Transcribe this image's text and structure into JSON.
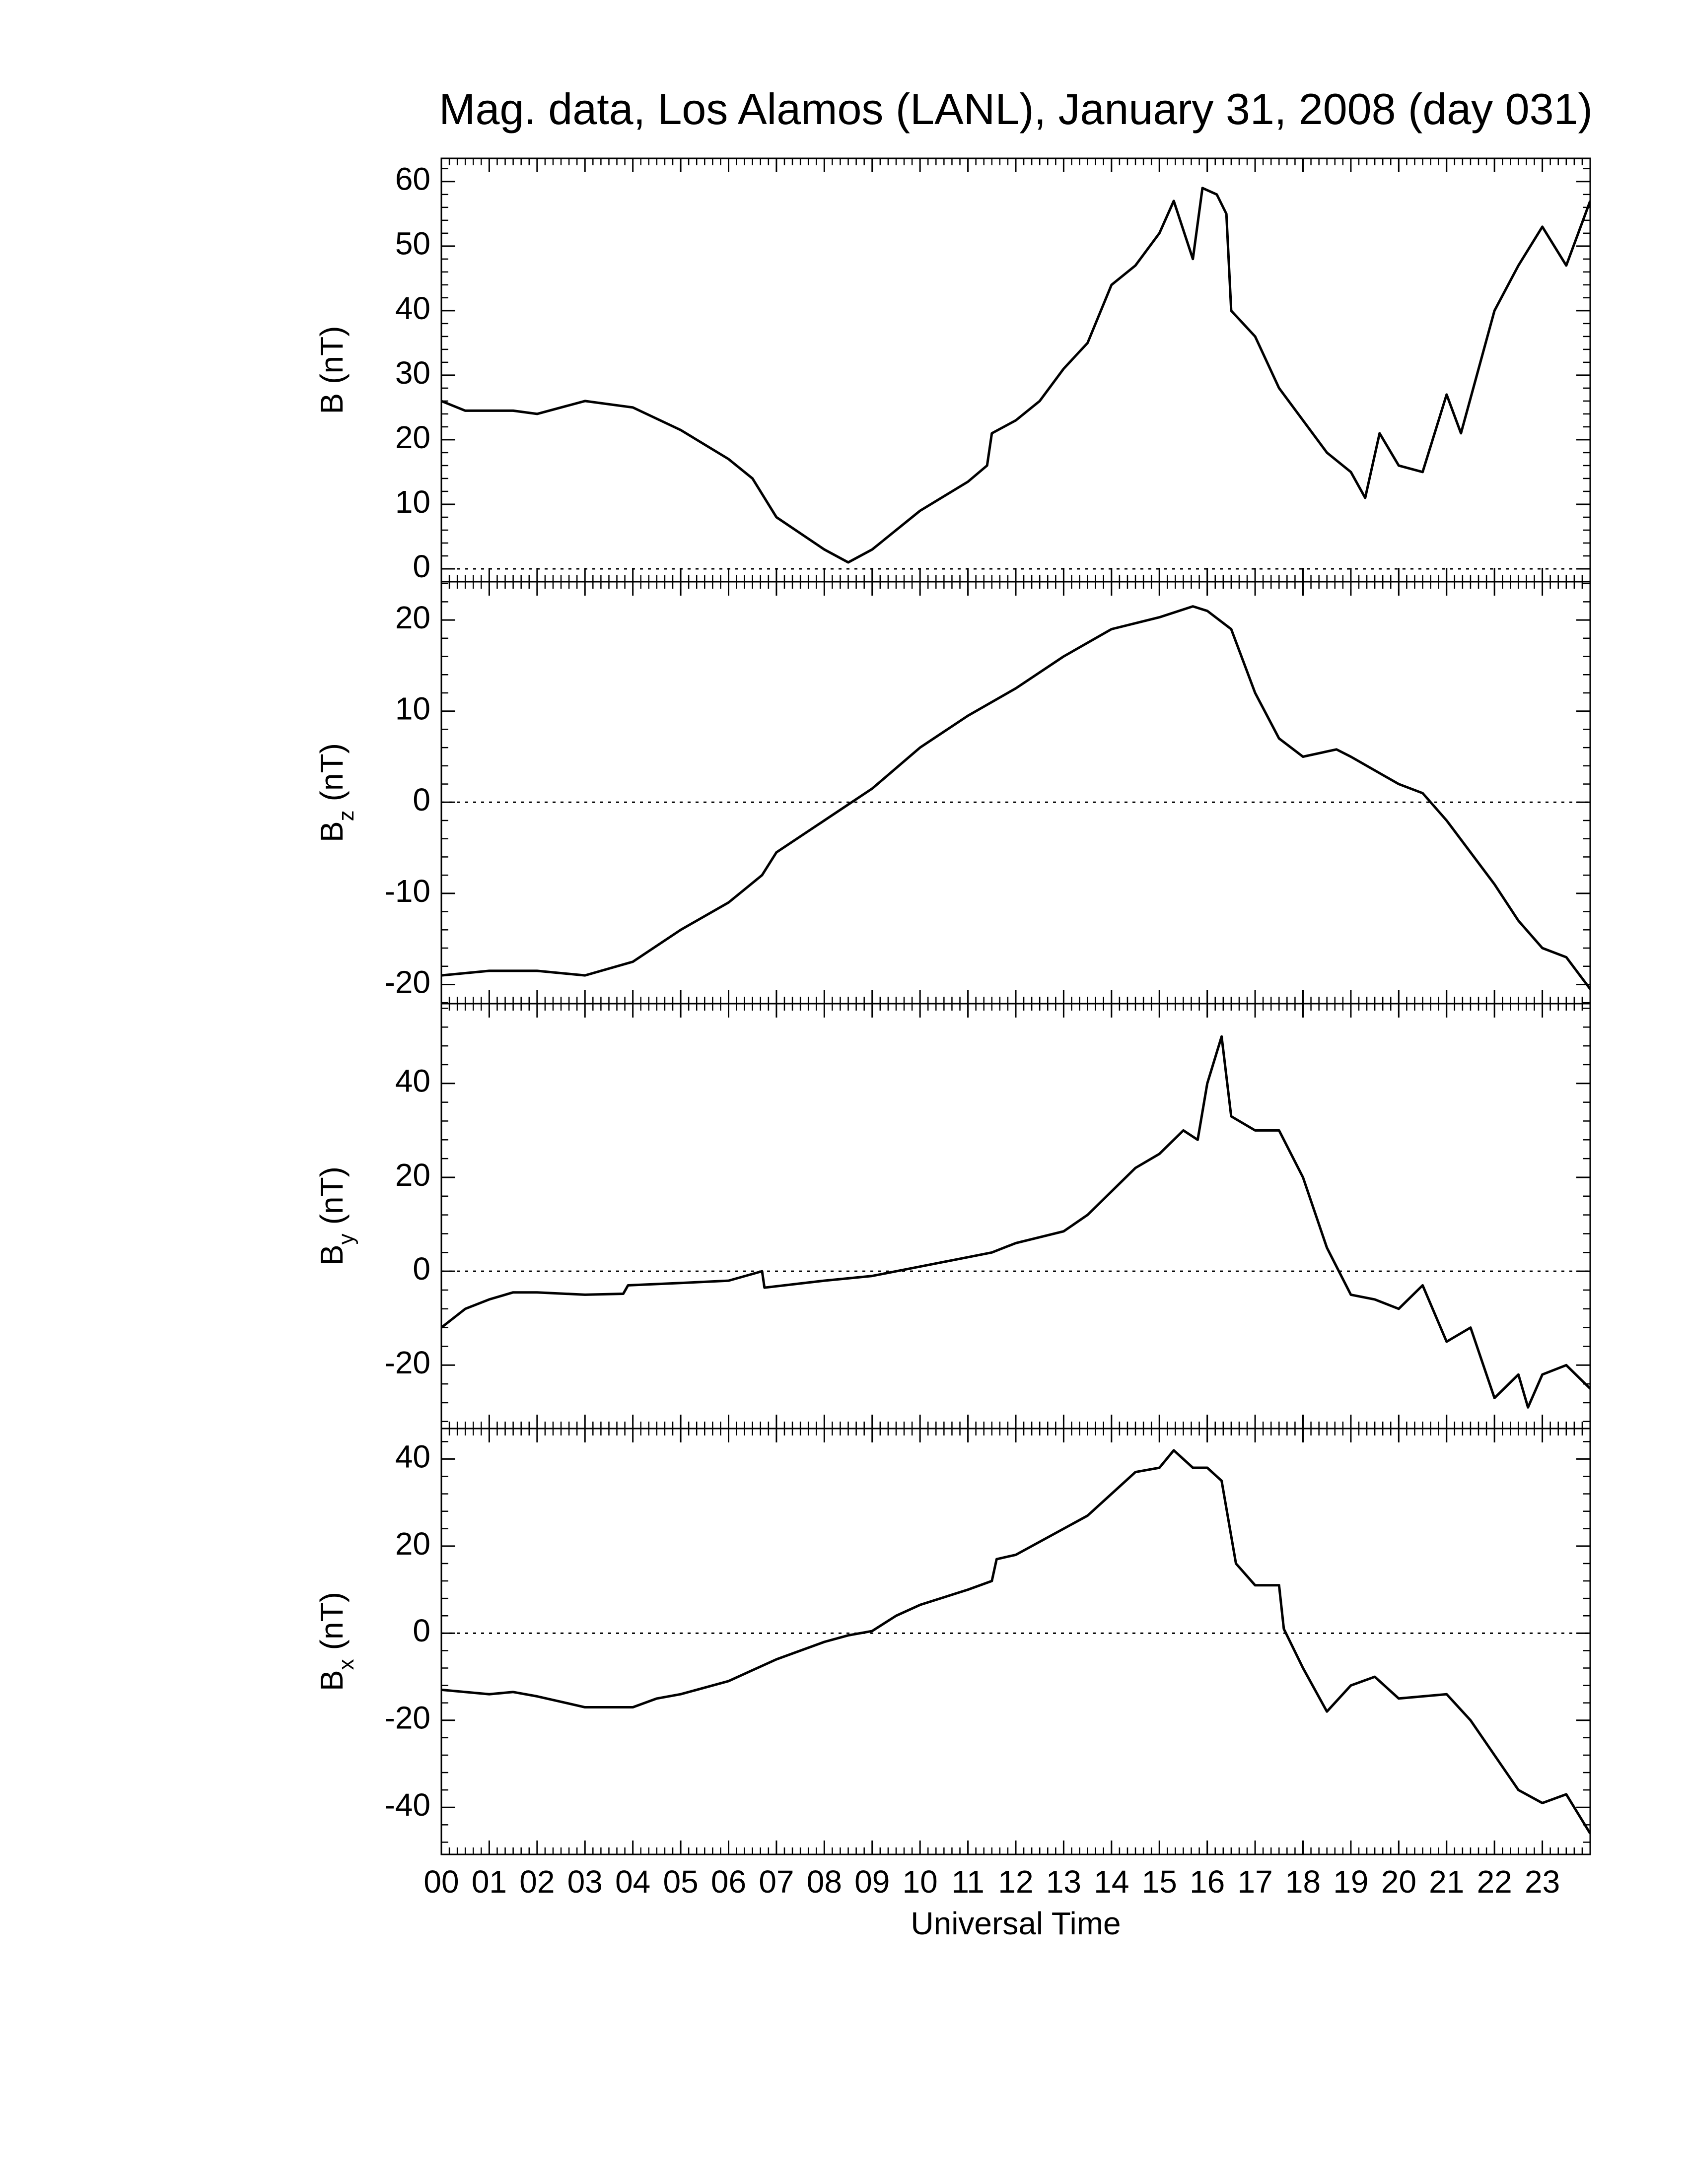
{
  "chart_data": [
    {
      "type": "line",
      "title": "Mag. data, Los Alamos (LANL), January 31, 2008 (day 031)",
      "ylabel": {
        "base": "B",
        "unit": "(nT)"
      },
      "color": "#000000",
      "hline": 0,
      "xminor": 6,
      "xlim": [
        0,
        24
      ],
      "xticks": [
        0,
        1,
        2,
        3,
        4,
        5,
        6,
        7,
        8,
        9,
        10,
        11,
        12,
        13,
        14,
        15,
        16,
        17,
        18,
        19,
        20,
        21,
        22,
        23
      ],
      "ylim": [
        -2,
        63.6
      ],
      "yticks": [
        0,
        10,
        20,
        30,
        40,
        50,
        60
      ],
      "x": [
        0,
        0.5,
        1,
        1.5,
        2,
        3,
        4,
        5,
        6,
        6.5,
        7,
        8,
        8.5,
        9,
        10,
        11,
        11.4,
        11.5,
        12,
        12.5,
        13,
        13.5,
        14,
        14.5,
        15,
        15.3,
        15.7,
        15.9,
        16.2,
        16.4,
        16.5,
        17,
        17.5,
        18,
        18.5,
        19,
        19.3,
        19.6,
        20,
        20.5,
        21,
        21.3,
        22,
        22.5,
        23,
        23.5,
        24
      ],
      "values": [
        26,
        24.5,
        24.5,
        24.5,
        24,
        26,
        25,
        21.5,
        17,
        14,
        8,
        3,
        1,
        3,
        9,
        13.5,
        16,
        21,
        23,
        26,
        31,
        35,
        44,
        47,
        52,
        57,
        48,
        59,
        58,
        55,
        40,
        36,
        28,
        23,
        18,
        15,
        11,
        21,
        16,
        15,
        27,
        21,
        40,
        47,
        53,
        47,
        57
      ]
    },
    {
      "type": "line",
      "ylabel": {
        "base": "B",
        "sub": "z",
        "unit": "(nT)"
      },
      "color": "#000000",
      "hline": 0,
      "xminor": 6,
      "xlim": [
        0,
        24
      ],
      "xticks": [
        0,
        1,
        2,
        3,
        4,
        5,
        6,
        7,
        8,
        9,
        10,
        11,
        12,
        13,
        14,
        15,
        16,
        17,
        18,
        19,
        20,
        21,
        22,
        23
      ],
      "ylim": [
        -22.1,
        24.2
      ],
      "yticks": [
        -20,
        -10,
        0,
        10,
        20
      ],
      "x": [
        0,
        1,
        2,
        3,
        4,
        5,
        6,
        6.7,
        7,
        8,
        9,
        10,
        11,
        12,
        13,
        14,
        15,
        15.7,
        16,
        16.5,
        17,
        17.5,
        18,
        18.7,
        19,
        20,
        20.5,
        21,
        22,
        22.5,
        23,
        23.5,
        24
      ],
      "values": [
        -19,
        -18.5,
        -18.5,
        -19,
        -17.5,
        -14,
        -11,
        -8,
        -5.5,
        -2,
        1.5,
        6,
        9.5,
        12.5,
        16,
        19,
        20.3,
        21.5,
        21,
        19,
        12,
        7,
        5,
        5.8,
        5,
        2,
        1,
        -2,
        -9,
        -13,
        -16,
        -17,
        -20.5
      ]
    },
    {
      "type": "line",
      "ylabel": {
        "base": "B",
        "sub": "y",
        "unit": "(nT)"
      },
      "color": "#000000",
      "hline": 0,
      "xminor": 6,
      "xlim": [
        0,
        24
      ],
      "xticks": [
        0,
        1,
        2,
        3,
        4,
        5,
        6,
        7,
        8,
        9,
        10,
        11,
        12,
        13,
        14,
        15,
        16,
        17,
        18,
        19,
        20,
        21,
        22,
        23
      ],
      "ylim": [
        -33.5,
        57
      ],
      "yticks": [
        -20,
        0,
        20,
        40
      ],
      "x": [
        0,
        0.5,
        1,
        1.5,
        2,
        3,
        3.8,
        3.9,
        5,
        6,
        6.7,
        6.75,
        8,
        9,
        10,
        11,
        11.5,
        12,
        13,
        13.5,
        14,
        14.5,
        15,
        15.5,
        15.8,
        16,
        16.3,
        16.5,
        17,
        17.5,
        18,
        18.5,
        19,
        19.5,
        20,
        20.5,
        21,
        21.5,
        22,
        22.5,
        22.7,
        23,
        23.5,
        24
      ],
      "values": [
        -12,
        -8,
        -6,
        -4.5,
        -4.5,
        -5,
        -4.8,
        -3,
        -2.5,
        -2,
        0,
        -3.5,
        -2,
        -1,
        1,
        3,
        4,
        6,
        8.5,
        12,
        17,
        22,
        25,
        30,
        28,
        40,
        50,
        33,
        30,
        30,
        20,
        5,
        -5,
        -6,
        -8,
        -3,
        -15,
        -12,
        -27,
        -22,
        -29,
        -22,
        -20,
        -25
      ]
    },
    {
      "type": "line",
      "ylabel": {
        "base": "B",
        "sub": "x",
        "unit": "(nT)"
      },
      "xlabel": "Universal Time",
      "color": "#000000",
      "hline": 0,
      "xminor": 6,
      "xlim": [
        0,
        24
      ],
      "xticks": [
        {
          "value": 0,
          "label": "00"
        },
        {
          "value": 1,
          "label": "01"
        },
        {
          "value": 2,
          "label": "02"
        },
        {
          "value": 3,
          "label": "03"
        },
        {
          "value": 4,
          "label": "04"
        },
        {
          "value": 5,
          "label": "05"
        },
        {
          "value": 6,
          "label": "06"
        },
        {
          "value": 7,
          "label": "07"
        },
        {
          "value": 8,
          "label": "08"
        },
        {
          "value": 9,
          "label": "09"
        },
        {
          "value": 10,
          "label": "10"
        },
        {
          "value": 11,
          "label": "11"
        },
        {
          "value": 12,
          "label": "12"
        },
        {
          "value": 13,
          "label": "13"
        },
        {
          "value": 14,
          "label": "14"
        },
        {
          "value": 15,
          "label": "15"
        },
        {
          "value": 16,
          "label": "16"
        },
        {
          "value": 17,
          "label": "17"
        },
        {
          "value": 18,
          "label": "18"
        },
        {
          "value": 19,
          "label": "19"
        },
        {
          "value": 20,
          "label": "20"
        },
        {
          "value": 21,
          "label": "21"
        },
        {
          "value": 22,
          "label": "22"
        },
        {
          "value": 23,
          "label": "23"
        }
      ],
      "ylim": [
        -50.8,
        47
      ],
      "yticks": [
        -40,
        -20,
        0,
        20,
        40
      ],
      "x": [
        0,
        1,
        1.5,
        2,
        3,
        4,
        4.5,
        5,
        6,
        7,
        8,
        8.5,
        9,
        9.5,
        10,
        11,
        11.5,
        11.6,
        12,
        13,
        13.5,
        14,
        14.5,
        15,
        15.3,
        15.7,
        16,
        16.3,
        16.6,
        17,
        17.5,
        17.6,
        18,
        18.5,
        19,
        19.5,
        20,
        21,
        21.5,
        22,
        22.5,
        23,
        23.5,
        24
      ],
      "values": [
        -13,
        -14,
        -13.5,
        -14.5,
        -17,
        -17,
        -15,
        -14,
        -11,
        -6,
        -2,
        -0.5,
        0.5,
        4,
        6.5,
        10,
        12,
        17,
        18,
        24,
        27,
        32,
        37,
        38,
        42,
        38,
        38,
        35,
        16,
        11,
        11,
        1,
        -8,
        -18,
        -12,
        -10,
        -15,
        -14,
        -20,
        -28,
        -36,
        -39,
        -37,
        -46
      ]
    }
  ]
}
